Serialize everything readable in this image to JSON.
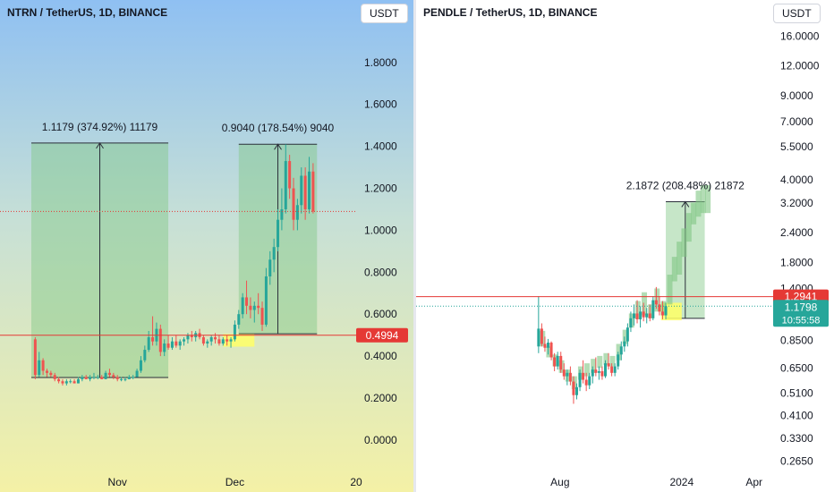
{
  "colors": {
    "up": "#26a69a",
    "down": "#ef5350",
    "measure_fill": "#81c784",
    "measure_line": "#2a2e39",
    "price_line": "#e53935",
    "current_label": "#26a69a"
  },
  "left_chart": {
    "title": "NTRN / TetherUS, 1D, BINANCE",
    "currency": "USDT",
    "current_price_label": "0.4994",
    "measurements": [
      {
        "label": "1.1179 (374.92%) 11179",
        "from": 0.2982,
        "to": 1.4161
      },
      {
        "label": "0.9040 (178.54%) 9040",
        "from": 0.5063,
        "to": 1.4103
      }
    ],
    "chart_data": {
      "type": "candlestick",
      "y_scale": "linear",
      "ylim": [
        -0.12,
        1.97
      ],
      "y_ticks": [
        "0.0000",
        "0.2000",
        "0.4000",
        "0.6000",
        "0.8000",
        "1.0000",
        "1.2000",
        "1.4000",
        "1.6000",
        "1.8000"
      ],
      "y_tick_values": [
        0,
        0.2,
        0.4,
        0.6,
        0.8,
        1.0,
        1.2,
        1.4,
        1.6,
        1.8
      ],
      "x_ticks": [
        "Nov",
        "Dec",
        "20"
      ],
      "x_tick_dates": [
        "2023-11-01",
        "2023-12-01",
        "2024-01-01"
      ],
      "xlim": [
        "2023-10-02",
        "2024-01-01"
      ],
      "horizontal_line": 0.4994,
      "dotted_line": 1.09,
      "measure_rects": [
        {
          "start": "2023-10-10",
          "end": "2023-11-14",
          "low": 0.2982,
          "high": 1.4161
        },
        {
          "start": "2023-12-02",
          "end": "2023-12-22",
          "low": 0.5063,
          "high": 1.4103
        }
      ],
      "highlight_rects": [
        {
          "start": "2023-11-28",
          "end": "2023-12-06",
          "low": 0.445,
          "high": 0.505
        }
      ],
      "candles": [
        [
          "2023-10-11",
          0.48,
          0.49,
          0.29,
          0.31
        ],
        [
          "2023-10-12",
          0.31,
          0.42,
          0.3,
          0.38
        ],
        [
          "2023-10-13",
          0.38,
          0.39,
          0.31,
          0.33
        ],
        [
          "2023-10-14",
          0.33,
          0.34,
          0.3,
          0.32
        ],
        [
          "2023-10-15",
          0.32,
          0.33,
          0.3,
          0.31
        ],
        [
          "2023-10-16",
          0.31,
          0.32,
          0.28,
          0.29
        ],
        [
          "2023-10-17",
          0.29,
          0.3,
          0.27,
          0.28
        ],
        [
          "2023-10-18",
          0.28,
          0.29,
          0.26,
          0.27
        ],
        [
          "2023-10-19",
          0.27,
          0.29,
          0.26,
          0.28
        ],
        [
          "2023-10-20",
          0.28,
          0.29,
          0.27,
          0.28
        ],
        [
          "2023-10-21",
          0.28,
          0.29,
          0.27,
          0.27
        ],
        [
          "2023-10-22",
          0.27,
          0.3,
          0.27,
          0.29
        ],
        [
          "2023-10-23",
          0.29,
          0.31,
          0.28,
          0.3
        ],
        [
          "2023-10-24",
          0.3,
          0.31,
          0.29,
          0.29
        ],
        [
          "2023-10-25",
          0.29,
          0.31,
          0.28,
          0.3
        ],
        [
          "2023-10-26",
          0.3,
          0.32,
          0.29,
          0.3
        ],
        [
          "2023-10-27",
          0.3,
          0.31,
          0.29,
          0.3
        ],
        [
          "2023-10-28",
          0.3,
          0.31,
          0.29,
          0.29
        ],
        [
          "2023-10-29",
          0.29,
          0.33,
          0.29,
          0.32
        ],
        [
          "2023-10-30",
          0.32,
          0.34,
          0.3,
          0.31
        ],
        [
          "2023-10-31",
          0.31,
          0.32,
          0.29,
          0.3
        ],
        [
          "2023-11-01",
          0.3,
          0.31,
          0.28,
          0.29
        ],
        [
          "2023-11-02",
          0.29,
          0.3,
          0.28,
          0.29
        ],
        [
          "2023-11-03",
          0.29,
          0.3,
          0.28,
          0.29
        ],
        [
          "2023-11-04",
          0.29,
          0.31,
          0.29,
          0.3
        ],
        [
          "2023-11-05",
          0.3,
          0.31,
          0.29,
          0.3
        ],
        [
          "2023-11-06",
          0.3,
          0.34,
          0.3,
          0.33
        ],
        [
          "2023-11-07",
          0.33,
          0.4,
          0.32,
          0.38
        ],
        [
          "2023-11-08",
          0.38,
          0.45,
          0.37,
          0.43
        ],
        [
          "2023-11-09",
          0.43,
          0.52,
          0.42,
          0.49
        ],
        [
          "2023-11-10",
          0.49,
          0.59,
          0.45,
          0.47
        ],
        [
          "2023-11-11",
          0.47,
          0.56,
          0.45,
          0.53
        ],
        [
          "2023-11-12",
          0.53,
          0.55,
          0.4,
          0.42
        ],
        [
          "2023-11-13",
          0.42,
          0.48,
          0.4,
          0.46
        ],
        [
          "2023-11-14",
          0.46,
          0.5,
          0.43,
          0.44
        ],
        [
          "2023-11-15",
          0.44,
          0.49,
          0.43,
          0.47
        ],
        [
          "2023-11-16",
          0.47,
          0.5,
          0.44,
          0.45
        ],
        [
          "2023-11-17",
          0.45,
          0.48,
          0.43,
          0.47
        ],
        [
          "2023-11-18",
          0.47,
          0.49,
          0.45,
          0.48
        ],
        [
          "2023-11-19",
          0.48,
          0.51,
          0.46,
          0.5
        ],
        [
          "2023-11-20",
          0.5,
          0.52,
          0.47,
          0.49
        ],
        [
          "2023-11-21",
          0.49,
          0.52,
          0.47,
          0.51
        ],
        [
          "2023-11-22",
          0.51,
          0.53,
          0.48,
          0.49
        ],
        [
          "2023-11-23",
          0.49,
          0.5,
          0.45,
          0.46
        ],
        [
          "2023-11-24",
          0.46,
          0.48,
          0.44,
          0.47
        ],
        [
          "2023-11-25",
          0.47,
          0.5,
          0.45,
          0.49
        ],
        [
          "2023-11-26",
          0.49,
          0.51,
          0.46,
          0.48
        ],
        [
          "2023-11-27",
          0.48,
          0.5,
          0.45,
          0.46
        ],
        [
          "2023-11-28",
          0.46,
          0.49,
          0.45,
          0.48
        ],
        [
          "2023-11-29",
          0.48,
          0.5,
          0.45,
          0.47
        ],
        [
          "2023-11-30",
          0.47,
          0.49,
          0.44,
          0.48
        ],
        [
          "2023-12-01",
          0.48,
          0.57,
          0.47,
          0.55
        ],
        [
          "2023-12-02",
          0.55,
          0.62,
          0.53,
          0.6
        ],
        [
          "2023-12-03",
          0.6,
          0.7,
          0.58,
          0.68
        ],
        [
          "2023-12-04",
          0.68,
          0.76,
          0.6,
          0.64
        ],
        [
          "2023-12-05",
          0.64,
          0.68,
          0.58,
          0.62
        ],
        [
          "2023-12-06",
          0.62,
          0.66,
          0.56,
          0.64
        ],
        [
          "2023-12-07",
          0.64,
          0.7,
          0.6,
          0.63
        ],
        [
          "2023-12-08",
          0.63,
          0.66,
          0.52,
          0.55
        ],
        [
          "2023-12-09",
          0.55,
          0.82,
          0.54,
          0.78
        ],
        [
          "2023-12-10",
          0.78,
          0.9,
          0.74,
          0.86
        ],
        [
          "2023-12-11",
          0.86,
          0.96,
          0.8,
          0.92
        ],
        [
          "2023-12-12",
          0.92,
          1.1,
          0.9,
          1.05
        ],
        [
          "2023-12-13",
          1.05,
          1.2,
          1.0,
          1.1
        ],
        [
          "2023-12-14",
          1.1,
          1.41,
          1.08,
          1.33
        ],
        [
          "2023-12-15",
          1.33,
          1.36,
          1.15,
          1.2
        ],
        [
          "2023-12-16",
          1.2,
          1.25,
          1.0,
          1.05
        ],
        [
          "2023-12-17",
          1.05,
          1.15,
          1.0,
          1.12
        ],
        [
          "2023-12-18",
          1.12,
          1.3,
          1.08,
          1.26
        ],
        [
          "2023-12-19",
          1.26,
          1.3,
          1.05,
          1.1
        ],
        [
          "2023-12-20",
          1.1,
          1.35,
          1.08,
          1.28
        ],
        [
          "2023-12-21",
          1.28,
          1.32,
          1.08,
          1.09
        ]
      ]
    }
  },
  "right_chart": {
    "title": "PENDLE / TetherUS, 1D, BINANCE",
    "currency": "USDT",
    "price_label": "1.2941",
    "current_price_label": "1.1798",
    "countdown_label": "10:55:58",
    "measurements": [
      {
        "label": "2.1872 (208.48%) 21872",
        "from": 1.0491,
        "to": 3.2363
      }
    ],
    "chart_data": {
      "type": "candlestick",
      "y_scale": "log",
      "ylim": [
        0.25,
        17.5
      ],
      "y_ticks": [
        "0.2650",
        "0.3300",
        "0.4100",
        "0.5100",
        "0.6500",
        "0.8500",
        "1.4000",
        "1.8000",
        "2.4000",
        "3.2000",
        "4.0000",
        "5.5000",
        "7.0000",
        "9.0000",
        "12.0000",
        "16.0000"
      ],
      "y_tick_values": [
        0.265,
        0.33,
        0.41,
        0.51,
        0.65,
        0.85,
        1.4,
        1.8,
        2.4,
        3.2,
        4.0,
        5.5,
        7.0,
        9.0,
        12.0,
        16.0
      ],
      "x_ticks": [
        "Aug",
        "2024",
        "Apr"
      ],
      "x_tick_dates": [
        "2023-08-01",
        "2024-01-01",
        "2024-04-01"
      ],
      "xlim": [
        "2023-02-01",
        "2024-04-25"
      ],
      "horizontal_line": 1.2941,
      "dotted_line": 1.1798,
      "measure_rects": [
        {
          "start": "2023-12-12",
          "end": "2024-01-30",
          "low": 1.0491,
          "high": 3.2363
        }
      ],
      "highlight_rects": [
        {
          "start": "2023-12-06",
          "end": "2024-01-01",
          "low": 1.03,
          "high": 1.22
        }
      ],
      "candles": [
        [
          "2023-07-05",
          0.8,
          1.3,
          0.75,
          0.95
        ],
        [
          "2023-07-09",
          0.95,
          1.0,
          0.8,
          0.82
        ],
        [
          "2023-07-13",
          0.82,
          0.88,
          0.76,
          0.79
        ],
        [
          "2023-07-17",
          0.79,
          0.86,
          0.74,
          0.83
        ],
        [
          "2023-07-21",
          0.83,
          0.84,
          0.7,
          0.72
        ],
        [
          "2023-07-25",
          0.72,
          0.75,
          0.63,
          0.66
        ],
        [
          "2023-07-29",
          0.66,
          0.76,
          0.64,
          0.73
        ],
        [
          "2023-08-02",
          0.73,
          0.76,
          0.62,
          0.64
        ],
        [
          "2023-08-06",
          0.64,
          0.68,
          0.58,
          0.6
        ],
        [
          "2023-08-10",
          0.6,
          0.64,
          0.55,
          0.62
        ],
        [
          "2023-08-14",
          0.62,
          0.66,
          0.55,
          0.57
        ],
        [
          "2023-08-18",
          0.57,
          0.6,
          0.46,
          0.5
        ],
        [
          "2023-08-22",
          0.5,
          0.56,
          0.48,
          0.54
        ],
        [
          "2023-08-26",
          0.54,
          0.64,
          0.52,
          0.62
        ],
        [
          "2023-08-30",
          0.62,
          0.7,
          0.56,
          0.58
        ],
        [
          "2023-09-03",
          0.58,
          0.62,
          0.52,
          0.55
        ],
        [
          "2023-09-07",
          0.55,
          0.62,
          0.53,
          0.6
        ],
        [
          "2023-09-11",
          0.6,
          0.66,
          0.56,
          0.64
        ],
        [
          "2023-09-15",
          0.64,
          0.72,
          0.6,
          0.62
        ],
        [
          "2023-09-19",
          0.62,
          0.66,
          0.58,
          0.63
        ],
        [
          "2023-09-23",
          0.63,
          0.66,
          0.58,
          0.6
        ],
        [
          "2023-09-27",
          0.6,
          0.7,
          0.59,
          0.68
        ],
        [
          "2023-10-01",
          0.68,
          0.75,
          0.64,
          0.66
        ],
        [
          "2023-10-05",
          0.66,
          0.68,
          0.6,
          0.62
        ],
        [
          "2023-10-09",
          0.62,
          0.68,
          0.6,
          0.66
        ],
        [
          "2023-10-13",
          0.66,
          0.76,
          0.64,
          0.74
        ],
        [
          "2023-10-17",
          0.74,
          0.84,
          0.7,
          0.8
        ],
        [
          "2023-10-21",
          0.8,
          0.88,
          0.76,
          0.84
        ],
        [
          "2023-10-25",
          0.84,
          1.0,
          0.8,
          0.96
        ],
        [
          "2023-10-29",
          0.96,
          1.12,
          0.92,
          1.05
        ],
        [
          "2023-11-02",
          1.05,
          1.2,
          0.98,
          1.1
        ],
        [
          "2023-11-06",
          1.1,
          1.25,
          1.0,
          1.04
        ],
        [
          "2023-11-10",
          1.04,
          1.18,
          0.96,
          1.12
        ],
        [
          "2023-11-14",
          1.12,
          1.22,
          1.02,
          1.06
        ],
        [
          "2023-11-18",
          1.06,
          1.16,
          1.0,
          1.1
        ],
        [
          "2023-11-22",
          1.1,
          1.2,
          1.02,
          1.05
        ],
        [
          "2023-11-26",
          1.05,
          1.3,
          1.03,
          1.25
        ],
        [
          "2023-11-30",
          1.25,
          1.42,
          1.15,
          1.2
        ],
        [
          "2023-12-04",
          1.2,
          1.3,
          1.08,
          1.12
        ],
        [
          "2023-12-08",
          1.12,
          1.24,
          1.04,
          1.08
        ],
        [
          "2023-12-12",
          1.08,
          1.22,
          1.04,
          1.18
        ]
      ],
      "overlay_bars": [
        [
          "2023-07-10",
          0.8,
          0.93
        ],
        [
          "2023-07-18",
          0.72,
          0.8
        ],
        [
          "2023-07-26",
          0.66,
          0.74
        ],
        [
          "2023-08-03",
          0.62,
          0.7
        ],
        [
          "2023-08-11",
          0.57,
          0.64
        ],
        [
          "2023-08-19",
          0.53,
          0.6
        ],
        [
          "2023-08-27",
          0.58,
          0.66
        ],
        [
          "2023-09-04",
          0.6,
          0.68
        ],
        [
          "2023-09-12",
          0.62,
          0.71
        ],
        [
          "2023-09-20",
          0.65,
          0.73
        ],
        [
          "2023-09-28",
          0.67,
          0.75
        ],
        [
          "2023-10-06",
          0.66,
          0.73
        ],
        [
          "2023-10-14",
          0.7,
          0.82
        ],
        [
          "2023-10-22",
          0.82,
          0.94
        ],
        [
          "2023-10-30",
          0.96,
          1.1
        ],
        [
          "2023-11-07",
          1.04,
          1.24
        ],
        [
          "2023-11-15",
          1.08,
          1.35
        ],
        [
          "2023-11-23",
          1.05,
          1.2
        ],
        [
          "2023-12-01",
          1.12,
          1.4
        ],
        [
          "2023-12-09",
          1.08,
          1.24
        ],
        [
          "2023-12-17",
          1.2,
          1.6
        ],
        [
          "2023-12-23",
          1.5,
          1.9
        ],
        [
          "2023-12-29",
          1.6,
          2.2
        ],
        [
          "2024-01-04",
          1.9,
          2.5
        ],
        [
          "2024-01-10",
          2.2,
          2.9
        ],
        [
          "2024-01-16",
          2.6,
          3.2
        ],
        [
          "2024-01-22",
          2.8,
          3.6
        ],
        [
          "2024-01-28",
          2.9,
          3.8
        ],
        [
          "2024-02-03",
          2.9,
          3.8
        ]
      ]
    }
  }
}
